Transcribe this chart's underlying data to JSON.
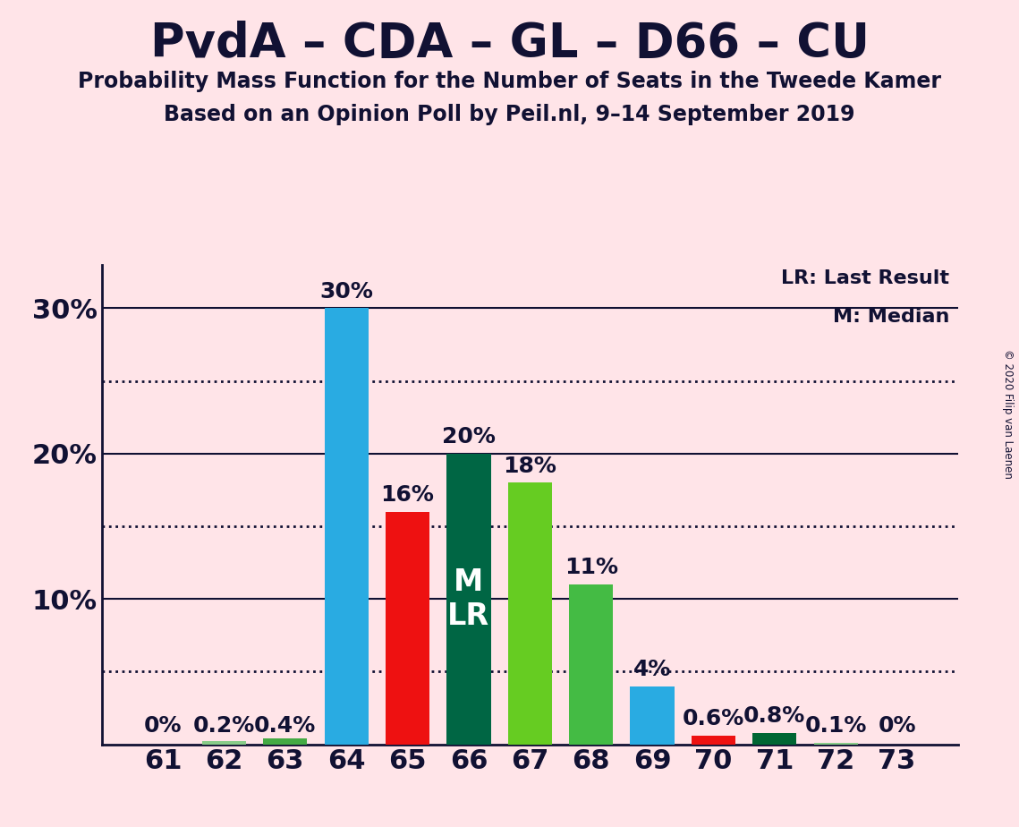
{
  "title": "PvdA – CDA – GL – D66 – CU",
  "subtitle1": "Probability Mass Function for the Number of Seats in the Tweede Kamer",
  "subtitle2": "Based on an Opinion Poll by Peil.nl, 9–14 September 2019",
  "copyright": "© 2020 Filip van Laenen",
  "categories": [
    61,
    62,
    63,
    64,
    65,
    66,
    67,
    68,
    69,
    70,
    71,
    72,
    73
  ],
  "values": [
    0.0,
    0.2,
    0.4,
    30.0,
    16.0,
    20.0,
    18.0,
    11.0,
    4.0,
    0.6,
    0.8,
    0.1,
    0.0
  ],
  "labels": [
    "0%",
    "0.2%",
    "0.4%",
    "30%",
    "16%",
    "20%",
    "18%",
    "11%",
    "4%",
    "0.6%",
    "0.8%",
    "0.1%",
    "0%"
  ],
  "colors": [
    "#88CC88",
    "#88CC88",
    "#44AA44",
    "#29ABE2",
    "#EE1111",
    "#006644",
    "#66CC22",
    "#44BB44",
    "#29ABE2",
    "#EE1111",
    "#006633",
    "#88CC88",
    "#CCEECC"
  ],
  "ylim": [
    0,
    33
  ],
  "solid_gridlines": [
    10,
    20,
    30
  ],
  "dotted_gridlines": [
    5,
    15,
    25
  ],
  "ytick_positions": [
    10,
    20,
    30
  ],
  "ytick_labels": [
    "10%",
    "20%",
    "30%"
  ],
  "background_color": "#FFE4E8",
  "spine_color": "#111133",
  "grid_color": "#111133",
  "legend_lr": "LR: Last Result",
  "legend_m": "M: Median",
  "title_fontsize": 38,
  "subtitle_fontsize": 17,
  "tick_fontsize": 22,
  "label_fontsize": 18,
  "bar_width": 0.72
}
